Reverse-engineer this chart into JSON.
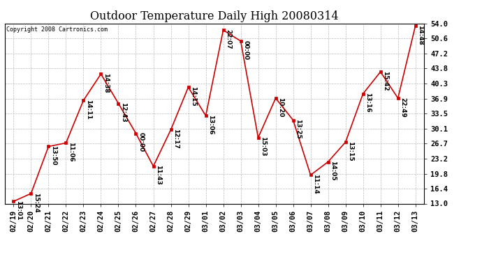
{
  "title": "Outdoor Temperature Daily High 20080314",
  "copyright": "Copyright 2008 Cartronics.com",
  "x_labels": [
    "02/19",
    "02/20",
    "02/21",
    "02/22",
    "02/23",
    "02/24",
    "02/25",
    "02/26",
    "02/27",
    "02/28",
    "02/29",
    "03/01",
    "03/02",
    "03/03",
    "03/04",
    "03/05",
    "03/06",
    "03/07",
    "03/08",
    "03/09",
    "03/10",
    "03/11",
    "03/12",
    "03/13"
  ],
  "y_values": [
    13.5,
    15.3,
    26.0,
    26.8,
    36.5,
    42.5,
    35.8,
    29.0,
    21.5,
    29.8,
    39.5,
    33.0,
    52.5,
    50.0,
    28.0,
    37.0,
    32.0,
    19.5,
    22.5,
    27.0,
    38.0,
    43.0,
    37.0,
    53.5
  ],
  "point_labels": [
    "13:01",
    "15:24",
    "13:50",
    "11:06",
    "14:11",
    "14:38",
    "12:43",
    "00:00",
    "11:43",
    "12:17",
    "14:15",
    "13:06",
    "22:07",
    "00:00",
    "15:03",
    "10:20",
    "13:25",
    "11:14",
    "14:05",
    "13:15",
    "13:16",
    "15:42",
    "22:49",
    "14:48"
  ],
  "y_ticks": [
    13.0,
    16.4,
    19.8,
    23.2,
    26.7,
    30.1,
    33.5,
    36.9,
    40.3,
    43.8,
    47.2,
    50.6,
    54.0
  ],
  "y_min": 13.0,
  "y_max": 54.0,
  "line_color": "#cc0000",
  "marker_color": "#cc0000",
  "background_color": "#ffffff",
  "grid_color": "#bbbbbb",
  "title_fontsize": 11.5,
  "label_fontsize": 6.5,
  "tick_fontsize": 7.5,
  "copyright_fontsize": 6.0
}
